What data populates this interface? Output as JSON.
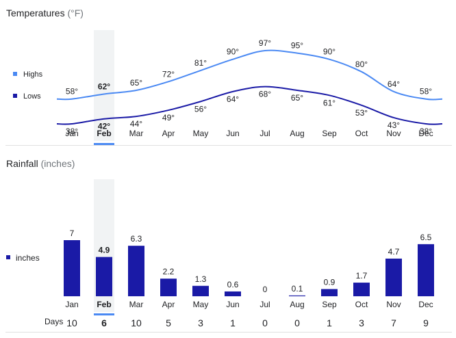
{
  "temperature": {
    "title": "Temperatures",
    "unit": "(°F)",
    "highs_color": "#4a89f3",
    "lows_color": "#1a1aa6",
    "chart_data": {
      "type": "line",
      "categories": [
        "Jan",
        "Feb",
        "Mar",
        "Apr",
        "May",
        "Jun",
        "Jul",
        "Aug",
        "Sep",
        "Oct",
        "Nov",
        "Dec"
      ],
      "series": [
        {
          "name": "Highs",
          "values": [
            58,
            62,
            65,
            72,
            81,
            90,
            97,
            95,
            90,
            80,
            64,
            58
          ],
          "labels": [
            "58°",
            "62°",
            "65°",
            "72°",
            "81°",
            "90°",
            "97°",
            "95°",
            "90°",
            "80°",
            "64°",
            "58°"
          ]
        },
        {
          "name": "Lows",
          "values": [
            38,
            42,
            44,
            49,
            56,
            64,
            68,
            65,
            61,
            53,
            43,
            38
          ],
          "labels": [
            "38°",
            "42°",
            "44°",
            "49°",
            "56°",
            "64°",
            "68°",
            "65°",
            "61°",
            "53°",
            "43°",
            "38°"
          ]
        }
      ],
      "selected": "Feb",
      "legend": "left",
      "grid": false
    }
  },
  "rainfall": {
    "title": "Rainfall",
    "unit": "(inches)",
    "bar_color": "#1a1aa6",
    "chart_data": {
      "type": "bar",
      "categories": [
        "Jan",
        "Feb",
        "Mar",
        "Apr",
        "May",
        "Jun",
        "Jul",
        "Aug",
        "Sep",
        "Oct",
        "Nov",
        "Dec"
      ],
      "series": [
        {
          "name": "inches",
          "values": [
            7,
            4.9,
            6.3,
            2.2,
            1.3,
            0.6,
            0,
            0.1,
            0.9,
            1.7,
            4.7,
            6.5
          ],
          "labels": [
            "7",
            "4.9",
            "6.3",
            "2.2",
            "1.3",
            "0.6",
            "0",
            "0.1",
            "0.9",
            "1.7",
            "4.7",
            "6.5"
          ]
        }
      ],
      "selected": "Feb",
      "legend": "left",
      "grid": false
    },
    "days": {
      "label": "Days",
      "values": [
        "10",
        "6",
        "10",
        "5",
        "3",
        "1",
        "0",
        "0",
        "1",
        "3",
        "7",
        "9"
      ]
    }
  }
}
